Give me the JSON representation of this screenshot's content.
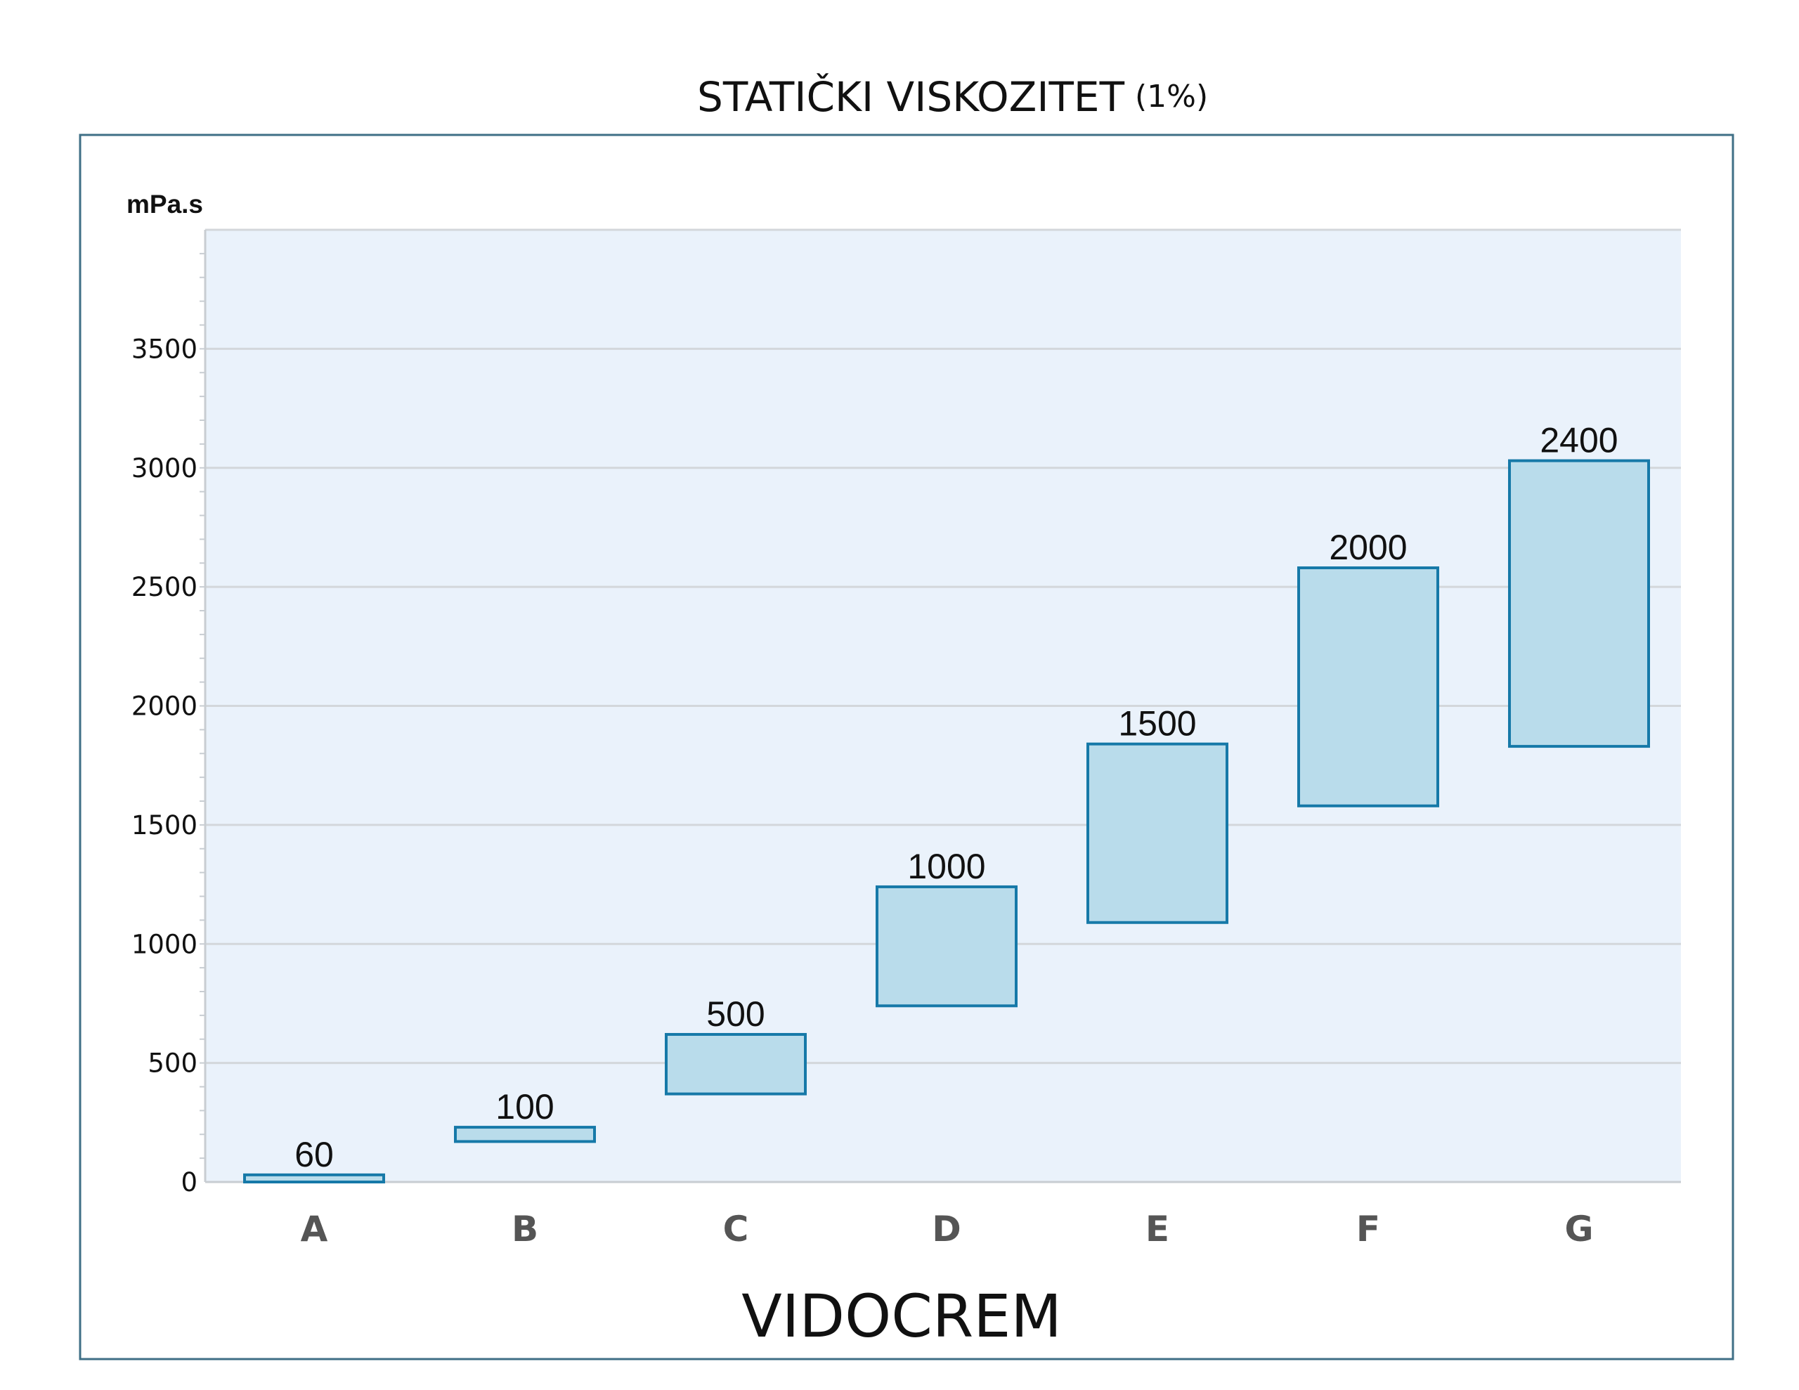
{
  "chart_data": {
    "type": "bar",
    "title": "STATIČKI VISKOZITET",
    "subtitle": "(1%)",
    "unit_label": "mPa.s",
    "xlabel": "VIDOCREM",
    "ylabel": "",
    "ylim": [
      0,
      4000
    ],
    "yticks": [
      "0",
      "500",
      "1000",
      "1500",
      "2000",
      "2500",
      "3000",
      "3500"
    ],
    "categories": [
      "A",
      "B",
      "C",
      "D",
      "E",
      "F",
      "G"
    ],
    "values": [
      60,
      100,
      500,
      1000,
      1500,
      2000,
      2400
    ],
    "ranges": [
      [
        0,
        30
      ],
      [
        170,
        230
      ],
      [
        370,
        620
      ],
      [
        740,
        1240
      ],
      [
        1090,
        1840
      ],
      [
        1580,
        2580
      ],
      [
        1830,
        3030
      ]
    ],
    "grid": true,
    "legend": "none",
    "colors": {
      "plot_bg": "#eaf2fb",
      "bar_fill": "#b9dceb",
      "bar_stroke": "#1679a8",
      "frame": "#3f6f86",
      "grid": "#d3d7db"
    }
  }
}
